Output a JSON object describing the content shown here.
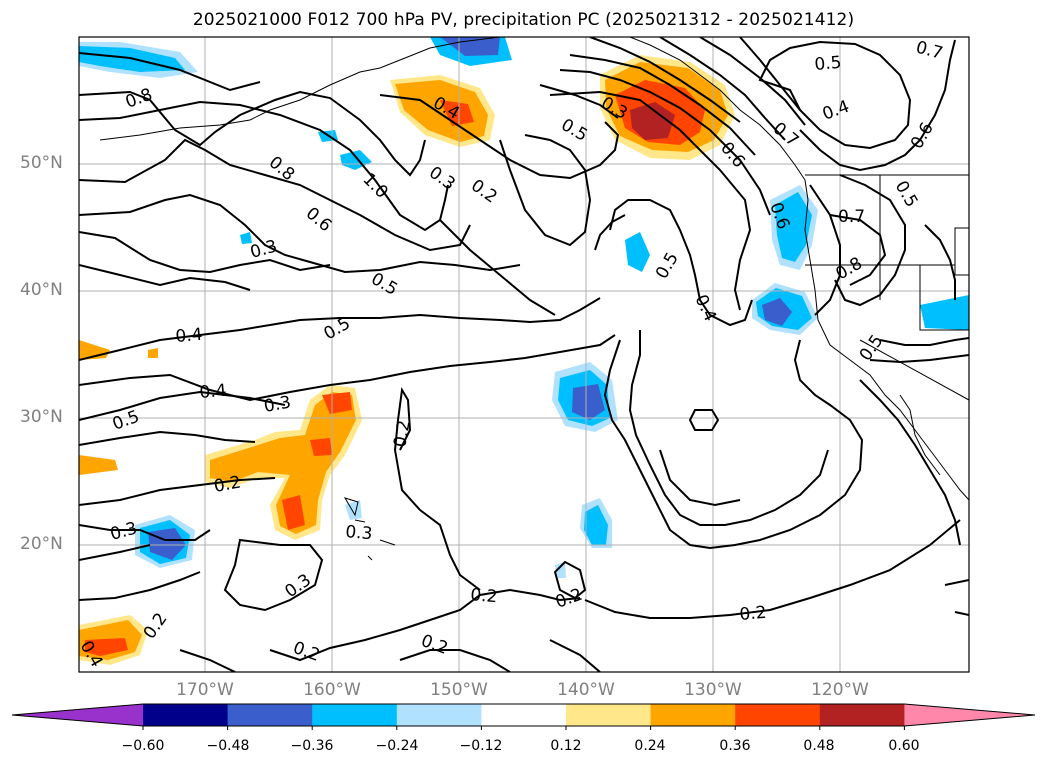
{
  "title": "2025021000 F012 700 hPa PV, precipitation PC (2025021312 - 2025021412)",
  "axes": {
    "lat_labels": [
      "50°N",
      "40°N",
      "30°N",
      "20°N"
    ],
    "lon_labels": [
      "170°W",
      "160°W",
      "150°W",
      "140°W",
      "130°W",
      "120°W"
    ]
  },
  "colorbar": {
    "ticks": [
      "−0.60",
      "−0.48",
      "−0.36",
      "−0.24",
      "−0.12",
      "0.12",
      "0.24",
      "0.36",
      "0.48",
      "0.60"
    ],
    "colors": [
      "#9932CC",
      "#00008B",
      "#3A5FCD",
      "#00BFFF",
      "#B0E2FF",
      "#FFFFFF",
      "#FFE78A",
      "#FFA500",
      "#FF4500",
      "#B22222",
      "#FF88AA"
    ],
    "extend": "both"
  },
  "contour_labels": [
    "0.7",
    "0.8",
    "0.4",
    "0.3",
    "0.5",
    "1.0",
    "0.8",
    "0.6",
    "0.3",
    "0.2",
    "0.3",
    "0.5",
    "0.5",
    "0.4",
    "0.4",
    "0.3",
    "0.5",
    "0.2",
    "0.2",
    "0.3",
    "0.3",
    "0.3",
    "0.2",
    "0.2",
    "0.2",
    "0.2",
    "0.4",
    "0.5",
    "0.4",
    "0.6",
    "0.7",
    "0.8",
    "0.5",
    "0.6",
    "0.5",
    "0.7",
    "0.2",
    "0.4",
    "0.5",
    "0.6",
    "0.2"
  ]
}
